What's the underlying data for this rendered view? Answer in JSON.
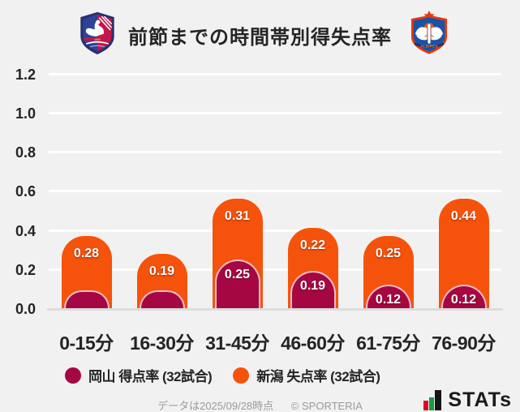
{
  "header": {
    "title": "前節までの時間帯別得失点率",
    "left_logo": "fagiano-okayama-crest",
    "right_logo": "albirex-niigata-crest"
  },
  "chart_data": {
    "type": "bar",
    "stacked": true,
    "title": "前節までの時間帯別得失点率",
    "categories": [
      "0-15分",
      "16-30分",
      "31-45分",
      "46-60分",
      "61-75分",
      "76-90分"
    ],
    "series": [
      {
        "name": "岡山 得点率 (32試合)",
        "color": "#A50742",
        "values": [
          0.09,
          0.09,
          0.25,
          0.19,
          0.12,
          0.12
        ],
        "labels": [
          "",
          "",
          "0.25",
          "0.19",
          "0.12",
          "0.12"
        ]
      },
      {
        "name": "新潟 失点率 (32試合)",
        "color": "#F5530C",
        "values": [
          0.28,
          0.19,
          0.31,
          0.22,
          0.25,
          0.44
        ],
        "labels": [
          "0.28",
          "0.19",
          "0.31",
          "0.22",
          "0.25",
          "0.44"
        ]
      }
    ],
    "ylim": [
      0,
      1.2
    ],
    "yticks": [
      "0.0",
      "0.2",
      "0.4",
      "0.6",
      "0.8",
      "1.0",
      "1.2"
    ],
    "grid": true,
    "legend_position": "bottom"
  },
  "footer": {
    "note": "データは2025/09/28時点",
    "copyright": "© SPORTERIA",
    "brand": "STATs"
  },
  "colors": {
    "background": "#F1F1F1",
    "gridline": "#FFFFFF",
    "axis": "#DCDCDC",
    "okayama_red": "#A50742",
    "niigata_orange": "#F5530C"
  }
}
